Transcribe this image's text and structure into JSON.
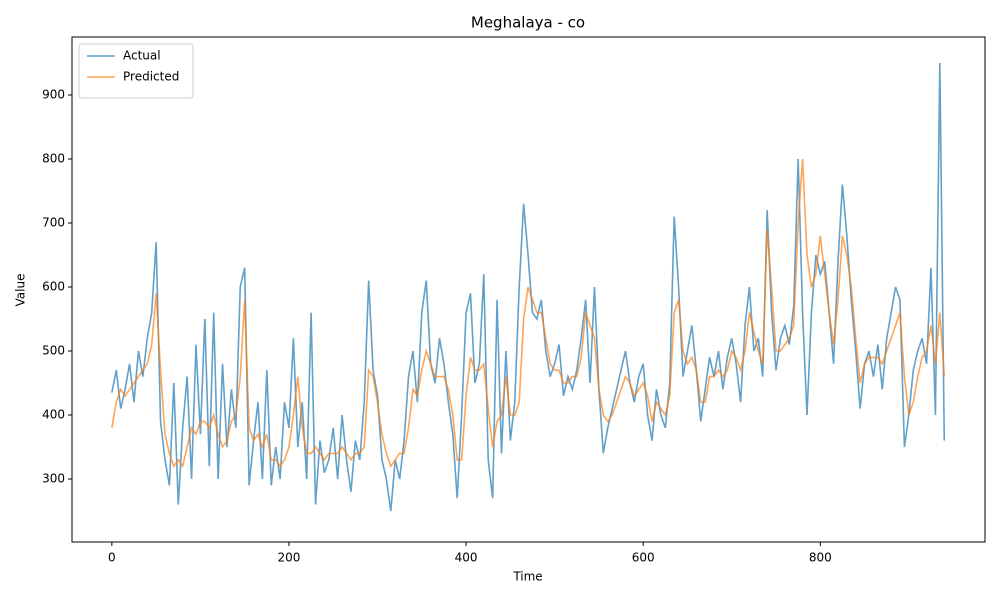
{
  "chart_data": {
    "type": "line",
    "title": "Meghalaya - co",
    "x_label": "Time",
    "y_label": "Value",
    "x": [
      0,
      5,
      10,
      15,
      20,
      25,
      30,
      35,
      40,
      45,
      50,
      55,
      60,
      65,
      70,
      75,
      80,
      85,
      90,
      95,
      100,
      105,
      110,
      115,
      120,
      125,
      130,
      135,
      140,
      145,
      150,
      155,
      160,
      165,
      170,
      175,
      180,
      185,
      190,
      195,
      200,
      205,
      210,
      215,
      220,
      225,
      230,
      235,
      240,
      245,
      250,
      255,
      260,
      265,
      270,
      275,
      280,
      285,
      290,
      295,
      300,
      305,
      310,
      315,
      320,
      325,
      330,
      335,
      340,
      345,
      350,
      355,
      360,
      365,
      370,
      375,
      380,
      385,
      390,
      395,
      400,
      405,
      410,
      415,
      420,
      425,
      430,
      435,
      440,
      445,
      450,
      455,
      460,
      465,
      470,
      475,
      480,
      485,
      490,
      495,
      500,
      505,
      510,
      515,
      520,
      525,
      530,
      535,
      540,
      545,
      550,
      555,
      560,
      565,
      570,
      575,
      580,
      585,
      590,
      595,
      600,
      605,
      610,
      615,
      620,
      625,
      630,
      635,
      640,
      645,
      650,
      655,
      660,
      665,
      670,
      675,
      680,
      685,
      690,
      695,
      700,
      705,
      710,
      715,
      720,
      725,
      730,
      735,
      740,
      745,
      750,
      755,
      760,
      765,
      770,
      775,
      780,
      785,
      790,
      795,
      800,
      805,
      810,
      815,
      820,
      825,
      830,
      835,
      840,
      845,
      850,
      855,
      860,
      865,
      870,
      875,
      880,
      885,
      890,
      895,
      900,
      905,
      910,
      915,
      920,
      925,
      930,
      935,
      940
    ],
    "series": [
      {
        "name": "Actual",
        "color": "#1f77b4",
        "values": [
          435,
          470,
          410,
          440,
          480,
          420,
          500,
          460,
          520,
          560,
          670,
          390,
          330,
          290,
          450,
          260,
          380,
          460,
          300,
          510,
          370,
          550,
          320,
          560,
          300,
          480,
          350,
          440,
          380,
          600,
          630,
          290,
          360,
          420,
          300,
          470,
          290,
          350,
          300,
          420,
          380,
          520,
          350,
          420,
          300,
          560,
          260,
          360,
          310,
          330,
          380,
          300,
          400,
          330,
          280,
          360,
          330,
          420,
          610,
          470,
          430,
          330,
          300,
          250,
          330,
          300,
          360,
          460,
          500,
          420,
          560,
          610,
          480,
          450,
          520,
          480,
          420,
          370,
          270,
          400,
          560,
          590,
          450,
          480,
          620,
          330,
          270,
          580,
          340,
          500,
          360,
          420,
          600,
          730,
          650,
          560,
          550,
          580,
          500,
          460,
          480,
          510,
          430,
          460,
          440,
          470,
          520,
          580,
          450,
          600,
          440,
          340,
          380,
          410,
          440,
          470,
          500,
          450,
          420,
          460,
          480,
          400,
          360,
          440,
          400,
          380,
          450,
          710,
          600,
          460,
          500,
          540,
          470,
          390,
          440,
          490,
          460,
          500,
          440,
          490,
          520,
          480,
          420,
          540,
          600,
          500,
          520,
          460,
          720,
          560,
          470,
          520,
          540,
          510,
          570,
          800,
          560,
          400,
          560,
          650,
          620,
          640,
          560,
          480,
          640,
          760,
          680,
          580,
          500,
          410,
          480,
          500,
          460,
          510,
          440,
          520,
          560,
          600,
          580,
          350,
          400,
          470,
          500,
          520,
          480,
          630,
          400,
          950,
          360
        ]
      },
      {
        "name": "Predicted",
        "color": "#ff7f0e",
        "values": [
          380,
          420,
          440,
          430,
          440,
          450,
          460,
          470,
          480,
          510,
          590,
          470,
          370,
          340,
          320,
          330,
          320,
          350,
          380,
          370,
          390,
          390,
          380,
          400,
          370,
          350,
          360,
          390,
          400,
          460,
          580,
          380,
          360,
          370,
          350,
          370,
          330,
          330,
          320,
          330,
          350,
          400,
          460,
          380,
          340,
          340,
          350,
          340,
          330,
          340,
          340,
          340,
          350,
          340,
          330,
          340,
          340,
          350,
          470,
          460,
          420,
          370,
          340,
          320,
          330,
          340,
          340,
          380,
          440,
          430,
          470,
          500,
          480,
          460,
          460,
          460,
          440,
          400,
          330,
          330,
          430,
          490,
          470,
          470,
          480,
          410,
          350,
          390,
          400,
          460,
          400,
          400,
          420,
          550,
          600,
          580,
          560,
          560,
          520,
          480,
          470,
          470,
          450,
          450,
          460,
          460,
          490,
          560,
          540,
          520,
          440,
          400,
          390,
          400,
          420,
          440,
          460,
          450,
          430,
          440,
          450,
          430,
          390,
          420,
          410,
          400,
          430,
          560,
          580,
          500,
          480,
          490,
          470,
          420,
          420,
          460,
          460,
          470,
          460,
          470,
          500,
          490,
          470,
          500,
          560,
          530,
          500,
          480,
          690,
          600,
          500,
          500,
          510,
          520,
          540,
          700,
          800,
          650,
          600,
          620,
          680,
          620,
          560,
          510,
          580,
          680,
          650,
          600,
          520,
          450,
          480,
          490,
          490,
          490,
          480,
          500,
          520,
          540,
          560,
          460,
          400,
          420,
          460,
          490,
          500,
          540,
          480,
          560,
          460
        ]
      }
    ],
    "xlim": [
      -45,
      986
    ],
    "ylim": [
      201.6,
      990.6
    ],
    "xticks": [
      0,
      200,
      400,
      600,
      800
    ],
    "yticks": [
      300,
      400,
      500,
      600,
      700,
      800,
      900
    ],
    "grid": false,
    "legend": "upper-left"
  }
}
